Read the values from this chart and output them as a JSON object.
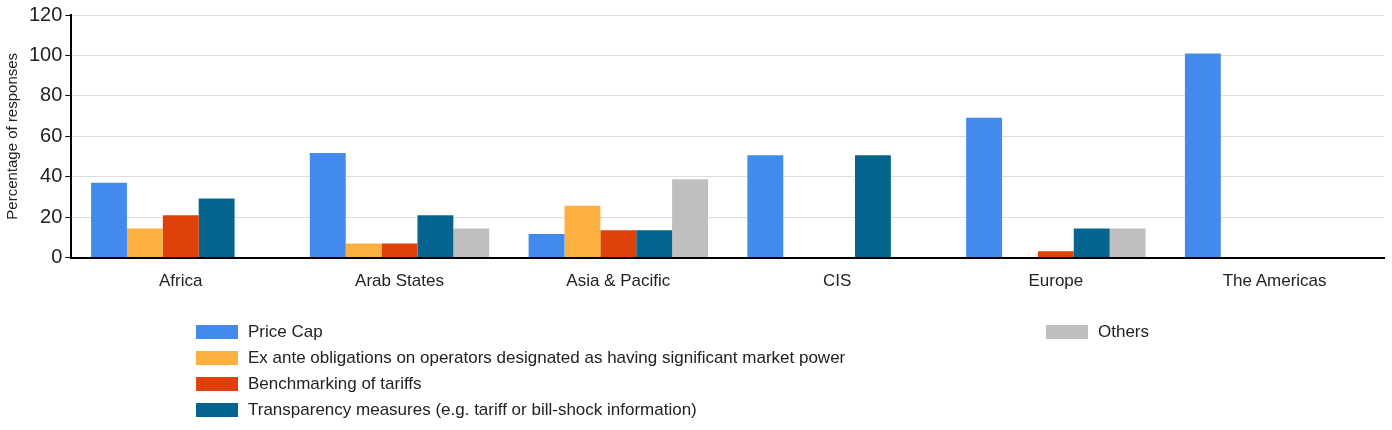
{
  "chart_data": {
    "type": "bar",
    "ylabel": "Percentage of responses",
    "categories": [
      "Africa",
      "Arab States",
      "Asia & Pacific",
      "CIS",
      "Europe",
      "The Americas"
    ],
    "series": [
      {
        "name": "Price Cap",
        "color": "#428bed",
        "values": [
          37,
          51.7,
          11.7,
          50.6,
          69.2,
          100.9
        ]
      },
      {
        "name": "Ex ante obligations on operators designated as having significant market power",
        "color": "#fbb040",
        "values": [
          14.4,
          7,
          25.6,
          null,
          null,
          null
        ]
      },
      {
        "name": "Benchmarking of tariffs",
        "color": "#e0400a",
        "values": [
          21,
          7,
          13.5,
          null,
          3.1,
          null
        ]
      },
      {
        "name": "Transparency measures (e.g. tariff or bill-shock information)",
        "color": "#06658f",
        "values": [
          29.2,
          21,
          13.5,
          50.6,
          14.4,
          null
        ]
      },
      {
        "name": "Others",
        "color": "#bfbfbf",
        "values": [
          null,
          14.4,
          38.7,
          null,
          14.4,
          null
        ]
      }
    ],
    "ylim": [
      0,
      120
    ],
    "yticks": [
      0,
      20,
      40,
      60,
      80,
      100,
      120
    ],
    "grid": "y",
    "legend": "bottom"
  }
}
